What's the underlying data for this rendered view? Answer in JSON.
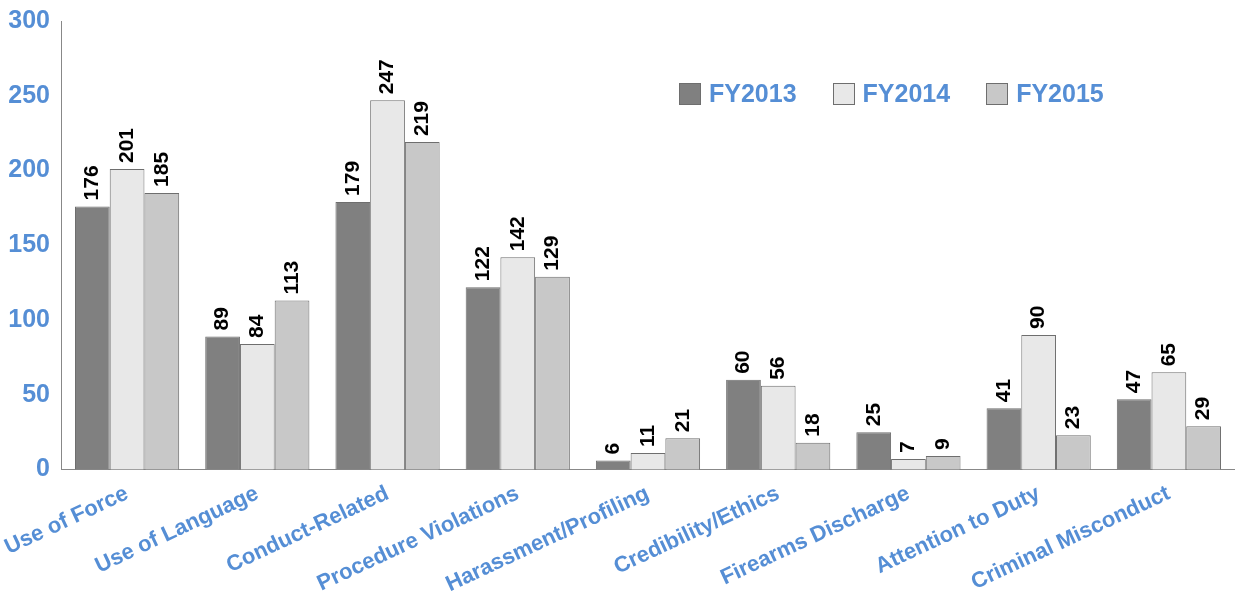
{
  "chart_data": {
    "type": "bar",
    "categories": [
      "Use of Force",
      "Use of Language",
      "Conduct-Related",
      "Procedure Violations",
      "Harassment/Profiling",
      "Credibility/Ethics",
      "Firearms Discharge",
      "Attention to Duty",
      "Criminal Misconduct"
    ],
    "series": [
      {
        "name": "FY2013",
        "color": "#808080",
        "values": [
          176,
          89,
          179,
          122,
          6,
          60,
          25,
          41,
          47
        ]
      },
      {
        "name": "FY2014",
        "color": "#e8e8e8",
        "values": [
          201,
          84,
          247,
          142,
          11,
          56,
          7,
          90,
          65
        ]
      },
      {
        "name": "FY2015",
        "color": "#c8c8c8",
        "values": [
          185,
          113,
          219,
          129,
          21,
          18,
          9,
          23,
          29
        ]
      }
    ],
    "ylim": [
      0,
      300
    ],
    "yticks": [
      0,
      50,
      100,
      150,
      200,
      250,
      300
    ],
    "grid": false,
    "legend": "top right",
    "data_labels": true
  }
}
